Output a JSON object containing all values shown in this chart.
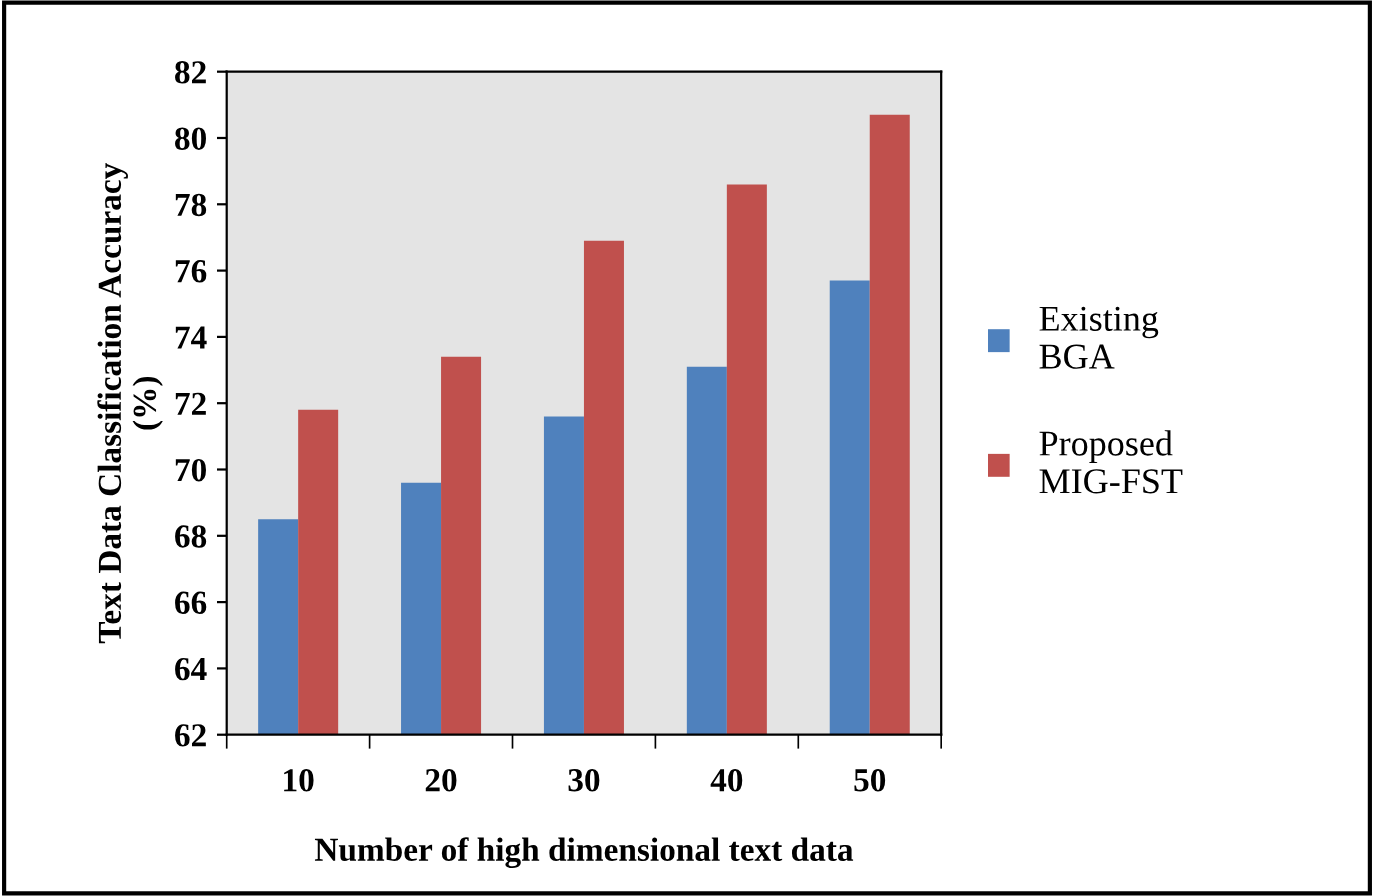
{
  "chart_data": {
    "type": "bar",
    "xlabel": "Number of high dimensional text data",
    "ylabel": "Text Data Classification Accuracy\n(%)",
    "categories": [
      "10",
      "20",
      "30",
      "40",
      "50"
    ],
    "series": [
      {
        "name": "Existing\nBGA",
        "color": "#4f81bd",
        "values": [
          68.5,
          69.6,
          71.6,
          73.1,
          75.7
        ]
      },
      {
        "name": "Proposed\nMIG-FST",
        "color": "#c0504d",
        "values": [
          71.8,
          73.4,
          76.9,
          78.6,
          80.7
        ]
      }
    ],
    "ylim": [
      62,
      82
    ],
    "yticks": [
      62,
      64,
      66,
      68,
      70,
      72,
      74,
      76,
      78,
      80,
      82
    ],
    "grid": false,
    "legend": "right"
  }
}
